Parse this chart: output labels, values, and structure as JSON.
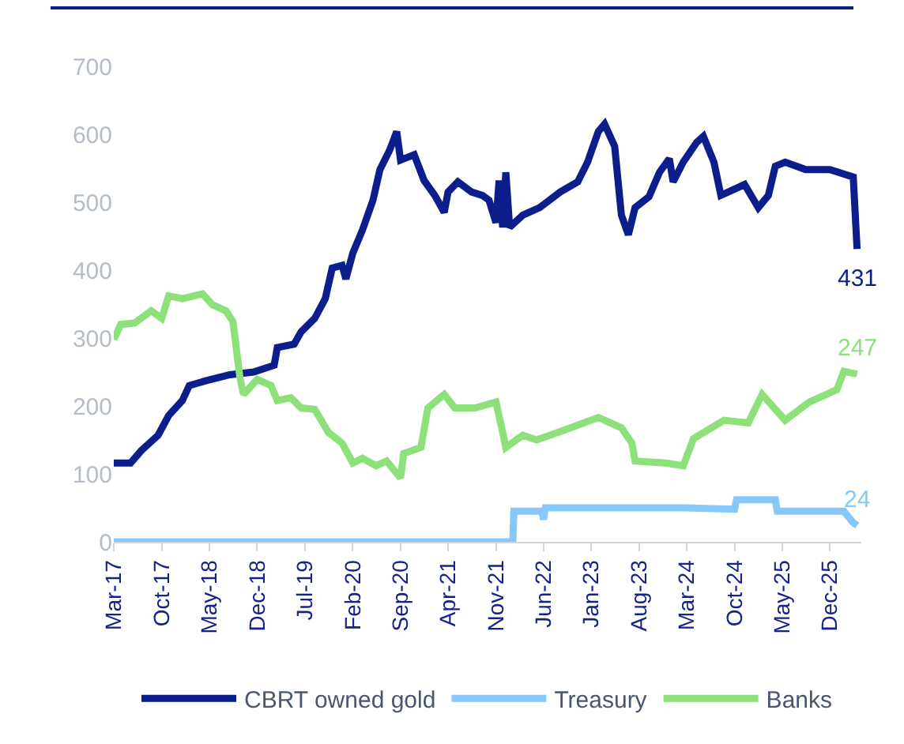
{
  "chart_data": {
    "type": "line",
    "xlim": [
      "2017-03-01",
      "2026-04-20"
    ],
    "xticks": [
      {
        "value": "2017-03",
        "label": "Mar-17"
      },
      {
        "value": "2017-10",
        "label": "Oct-17"
      },
      {
        "value": "2018-05",
        "label": "May-18"
      },
      {
        "value": "2018-12",
        "label": "Dec-18"
      },
      {
        "value": "2019-07",
        "label": "Jul-19"
      },
      {
        "value": "2020-02",
        "label": "Feb-20"
      },
      {
        "value": "2020-09",
        "label": "Sep-20"
      },
      {
        "value": "2021-04",
        "label": "Apr-21"
      },
      {
        "value": "2021-11",
        "label": "Nov-21"
      },
      {
        "value": "2022-06",
        "label": "Jun-22"
      },
      {
        "value": "2023-01",
        "label": "Jan-23"
      },
      {
        "value": "2023-08",
        "label": "Aug-23"
      },
      {
        "value": "2024-03",
        "label": "Mar-24"
      },
      {
        "value": "2024-10",
        "label": "Oct-24"
      },
      {
        "value": "2025-05",
        "label": "May-25"
      },
      {
        "value": "2025-12",
        "label": "Dec-25"
      }
    ],
    "ylim": [
      0,
      700
    ],
    "yticks": [
      0,
      100,
      200,
      300,
      400,
      500,
      600,
      700
    ],
    "grid": false,
    "legend": "bottom",
    "line_style": "solid",
    "marker": "none",
    "series": [
      {
        "name": "CBRT owned gold",
        "color": "#0b1e8c",
        "x": [
          "2017-03-01",
          "2017-05-15",
          "2017-07-01",
          "2017-09-15",
          "2017-11-01",
          "2018-01-01",
          "2018-02-01",
          "2018-04-15",
          "2018-08-01",
          "2018-11-15",
          "2019-02-15",
          "2019-03-01",
          "2019-05-15",
          "2019-06-15",
          "2019-08-15",
          "2019-10-01",
          "2019-11-01",
          "2019-12-15",
          "2020-01-01",
          "2020-02-01",
          "2020-03-15",
          "2020-05-01",
          "2020-06-01",
          "2020-07-15",
          "2020-08-15",
          "2020-09-01",
          "2020-11-01",
          "2020-12-15",
          "2021-02-01",
          "2021-03-15",
          "2021-04-01",
          "2021-05-15",
          "2021-07-15",
          "2021-09-01",
          "2021-10-01",
          "2021-11-01",
          "2021-11-15",
          "2021-12-01",
          "2021-12-15",
          "2022-01-01",
          "2022-03-01",
          "2022-05-15",
          "2022-08-15",
          "2022-11-01",
          "2022-12-15",
          "2023-02-01",
          "2023-03-01",
          "2023-04-15",
          "2023-05-15",
          "2023-06-15",
          "2023-07-15",
          "2023-09-15",
          "2023-11-01",
          "2023-12-15",
          "2024-01-01",
          "2024-02-15",
          "2024-04-15",
          "2024-05-15",
          "2024-07-01",
          "2024-08-01",
          "2024-11-15",
          "2025-01-15",
          "2025-03-01",
          "2025-04-01",
          "2025-05-15",
          "2025-08-15",
          "2025-12-01",
          "2026-03-15",
          "2026-04-01"
        ],
        "values": [
          116,
          116,
          134,
          157,
          186,
          208,
          230,
          237,
          246,
          250,
          260,
          286,
          291,
          309,
          329,
          358,
          403,
          407,
          387,
          425,
          459,
          503,
          548,
          577,
          604,
          562,
          570,
          532,
          510,
          485,
          515,
          530,
          515,
          510,
          503,
          470,
          532,
          463,
          544,
          463,
          481,
          492,
          515,
          530,
          559,
          604,
          615,
          582,
          481,
          452,
          492,
          508,
          544,
          564,
          530,
          559,
          588,
          597,
          559,
          510,
          526,
          492,
          510,
          553,
          559,
          548,
          548,
          537,
          431
        ]
      },
      {
        "name": "Treasury",
        "color": "#87c8fa",
        "x": [
          "2017-03-01",
          "2022-01-15",
          "2022-01-20",
          "2022-05-25",
          "2022-06-01",
          "2022-06-10",
          "2024-02-15",
          "2024-10-01",
          "2024-10-10",
          "2025-04-01",
          "2025-04-10",
          "2026-02-01",
          "2026-03-15",
          "2026-04-01"
        ],
        "values": [
          0,
          0,
          45,
          45,
          33,
          50,
          50,
          48,
          62,
          62,
          45,
          45,
          28,
          24
        ]
      },
      {
        "name": "Banks",
        "color": "#8ee07a",
        "x": [
          "2017-03-01",
          "2017-04-01",
          "2017-06-01",
          "2017-08-15",
          "2017-10-01",
          "2017-11-01",
          "2018-01-01",
          "2018-04-01",
          "2018-05-15",
          "2018-07-15",
          "2018-08-15",
          "2018-09-15",
          "2018-10-01",
          "2018-12-01",
          "2019-02-01",
          "2019-03-01",
          "2019-05-01",
          "2019-06-15",
          "2019-08-15",
          "2019-10-15",
          "2019-12-15",
          "2020-02-01",
          "2020-03-15",
          "2020-05-15",
          "2020-07-01",
          "2020-09-01",
          "2020-09-15",
          "2020-12-01",
          "2021-01-01",
          "2021-03-15",
          "2021-05-01",
          "2021-08-01",
          "2021-11-01",
          "2021-12-01",
          "2021-12-15",
          "2022-03-01",
          "2022-05-01",
          "2022-07-01",
          "2022-10-01",
          "2023-02-01",
          "2023-05-15",
          "2023-07-01",
          "2023-07-15",
          "2023-12-01",
          "2024-02-15",
          "2024-04-01",
          "2024-08-15",
          "2024-12-01",
          "2025-02-01",
          "2025-05-15",
          "2025-09-01",
          "2026-01-01",
          "2026-02-01",
          "2026-04-01"
        ],
        "values": [
          298,
          320,
          322,
          340,
          329,
          362,
          358,
          365,
          349,
          340,
          324,
          242,
          217,
          239,
          230,
          208,
          212,
          197,
          195,
          161,
          145,
          116,
          123,
          112,
          119,
          94,
          130,
          139,
          197,
          217,
          197,
          197,
          206,
          161,
          139,
          157,
          150,
          157,
          168,
          183,
          168,
          145,
          119,
          116,
          112,
          152,
          179,
          175,
          217,
          179,
          206,
          224,
          251,
          247
        ]
      }
    ],
    "annotations": [
      {
        "text": "431",
        "x": "2026-04-01",
        "y": 431
      },
      {
        "text": "247",
        "x": "2026-04-01",
        "y": 247
      },
      {
        "text": "24",
        "x": "2026-04-01",
        "y": 24
      }
    ]
  }
}
